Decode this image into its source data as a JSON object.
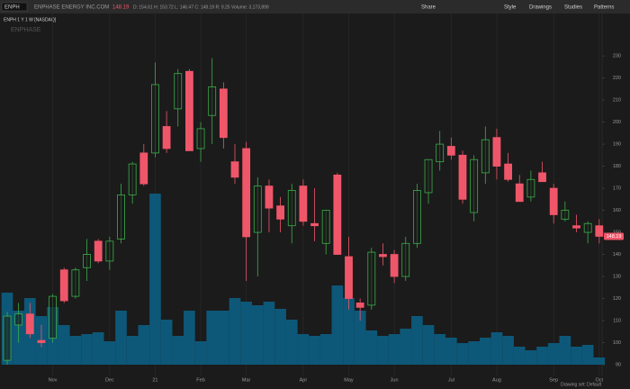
{
  "header": {
    "symbol": "ENPH",
    "company": "ENPHASE ENERGY INC.COM",
    "price": "148.19",
    "quote": "D: 154.61  H: 153.72  L: 146.47  C: 148.19  R: 9.25  Volume: 3,173,899",
    "toolbar": [
      "Share",
      "Style",
      "Drawings",
      "Studies",
      "Patterns"
    ],
    "chart_label": "ENPH 1 Y 1 W [NASDAQ]",
    "watermark": "ENPHASE",
    "footer": "Drawing set: Default"
  },
  "chart_data": {
    "type": "candlestick",
    "categories": [
      null,
      null,
      null,
      null,
      "Nov",
      null,
      null,
      null,
      null,
      "Dec",
      null,
      null,
      null,
      "21",
      null,
      null,
      null,
      "Feb",
      null,
      null,
      null,
      "Mar",
      null,
      null,
      null,
      null,
      "Apr",
      null,
      null,
      null,
      "May",
      null,
      null,
      null,
      "Jun",
      null,
      null,
      null,
      null,
      "Jul",
      null,
      null,
      null,
      "Aug",
      null,
      null,
      null,
      null,
      "Sep",
      null,
      null,
      null,
      "Oct"
    ],
    "series": [
      {
        "name": "ENPH",
        "up_color": "#3cae4a",
        "down_color": "#f0566a",
        "open": [
          92,
          108,
          113,
          101,
          102,
          133,
          121,
          134,
          146,
          137,
          147,
          167,
          186,
          186,
          198,
          206,
          223,
          188,
          203,
          215,
          182,
          188,
          150,
          171,
          162,
          153,
          171,
          154,
          145,
          176,
          139,
          118,
          117,
          140,
          140,
          130,
          145,
          168,
          182,
          189,
          185,
          159,
          177,
          193,
          181,
          172,
          166,
          177,
          170,
          156,
          153,
          150,
          153
        ],
        "high": [
          114,
          118,
          118,
          108,
          122,
          134,
          134,
          147,
          147,
          148,
          172,
          182,
          190,
          227,
          205,
          224,
          224,
          200,
          229,
          218,
          190,
          191,
          175,
          174,
          166,
          172,
          174,
          170,
          160,
          177,
          148,
          120,
          143,
          145,
          142,
          148,
          172,
          183,
          196,
          193,
          187,
          185,
          198,
          197,
          186,
          176,
          178,
          182,
          172,
          164,
          158,
          155,
          156
        ],
        "low": [
          90,
          100,
          102,
          98,
          100,
          118,
          120,
          128,
          136,
          133,
          145,
          163,
          171,
          184,
          186,
          198,
          188,
          182,
          190,
          188,
          172,
          128,
          130,
          150,
          150,
          145,
          153,
          146,
          140,
          140,
          115,
          110,
          115,
          135,
          127,
          128,
          143,
          163,
          178,
          183,
          163,
          155,
          172,
          174,
          173,
          164,
          164,
          173,
          154,
          155,
          150,
          145,
          145
        ],
        "close": [
          112,
          113,
          104,
          100,
          121,
          119,
          133,
          140,
          137,
          146,
          167,
          181,
          172,
          217,
          188,
          222,
          187,
          197,
          216,
          193,
          175,
          148,
          171,
          161,
          156,
          169,
          155,
          153,
          160,
          140,
          120,
          116,
          141,
          139,
          130,
          145,
          169,
          183,
          190,
          185,
          165,
          183,
          192,
          180,
          174,
          164,
          174,
          173,
          158,
          160,
          152,
          154,
          148.19
        ],
        "volume": [
          40,
          30,
          37,
          27,
          32,
          22,
          16,
          17,
          18,
          13,
          30,
          16,
          22,
          95,
          25,
          16,
          30,
          13,
          30,
          30,
          37,
          35,
          33,
          35,
          31,
          25,
          17,
          16,
          17,
          44,
          37,
          30,
          19,
          16,
          17,
          20,
          27,
          22,
          17,
          15,
          12,
          13,
          15,
          18,
          16,
          10,
          8,
          10,
          12,
          16,
          10,
          11,
          4
        ]
      }
    ],
    "last_price": 148.19,
    "last_price_label": "148.19",
    "volume_color": "#0d5878",
    "ylim": [
      84.7,
      248
    ],
    "yticks": [
      90,
      100,
      110,
      120,
      130,
      140,
      150,
      160,
      170,
      180,
      190,
      200,
      210,
      220,
      230
    ],
    "y2lim": [
      0,
      200
    ],
    "grid": true
  }
}
